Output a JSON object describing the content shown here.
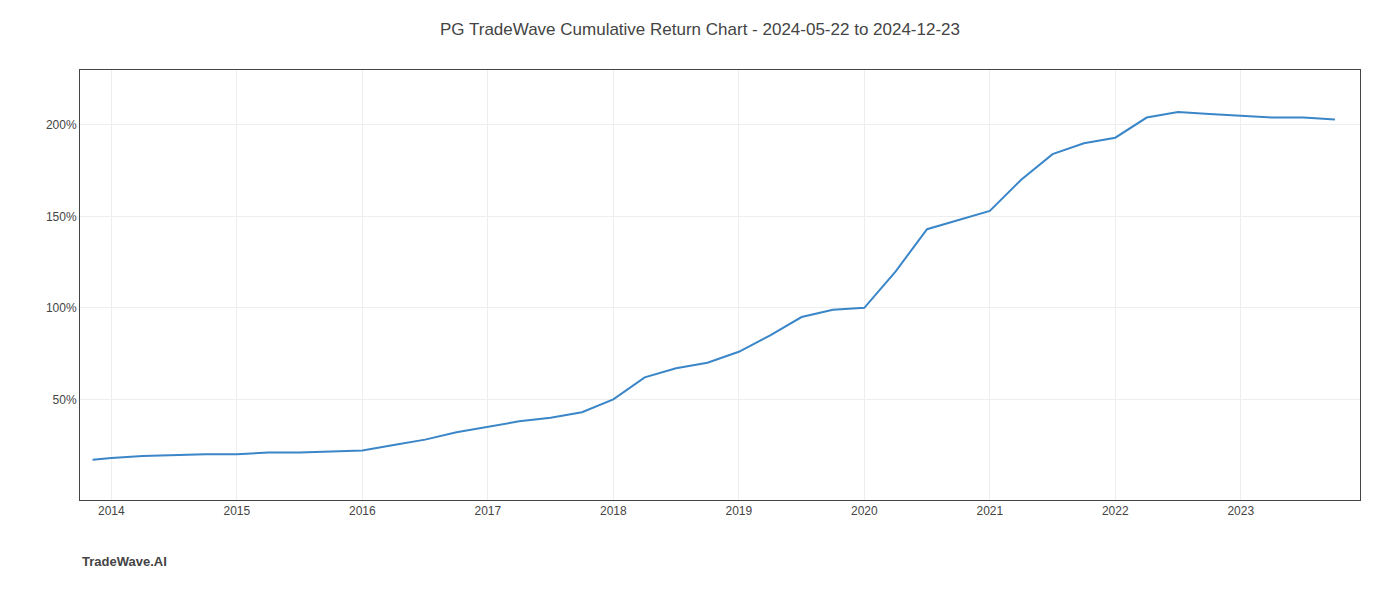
{
  "chart_data": {
    "type": "line",
    "title": "PG TradeWave Cumulative Return Chart - 2024-05-22 to 2024-12-23",
    "annotations": [
      {
        "text": "TradeWave.AI"
      }
    ],
    "x": [
      2013.85,
      2014.0,
      2014.25,
      2014.5,
      2014.75,
      2015.0,
      2015.25,
      2015.5,
      2015.75,
      2016.0,
      2016.25,
      2016.5,
      2016.75,
      2017.0,
      2017.25,
      2017.5,
      2017.75,
      2018.0,
      2018.25,
      2018.5,
      2018.75,
      2019.0,
      2019.25,
      2019.5,
      2019.75,
      2020.0,
      2020.25,
      2020.5,
      2020.75,
      2021.0,
      2021.25,
      2021.5,
      2021.75,
      2022.0,
      2022.25,
      2022.5,
      2022.75,
      2023.0,
      2023.25,
      2023.5,
      2023.75
    ],
    "values": [
      17,
      18,
      19,
      19.5,
      20,
      20,
      21,
      21,
      21.5,
      22,
      25,
      28,
      32,
      35,
      38,
      40,
      43,
      50,
      62,
      67,
      70,
      76,
      85,
      95,
      99,
      100,
      120,
      143,
      148,
      153,
      170,
      184,
      190,
      193,
      204,
      207,
      206,
      205,
      204,
      204,
      203
    ],
    "color": "#3a86c8",
    "xlim": [
      2013.75,
      2023.95
    ],
    "xticks": [
      2014,
      2015,
      2016,
      2017,
      2018,
      2019,
      2020,
      2021,
      2022,
      2023
    ],
    "ylim": [
      -5,
      230
    ],
    "yticks": [
      {
        "value": 50,
        "label": "50%"
      },
      {
        "value": 100,
        "label": "100%"
      },
      {
        "value": 150,
        "label": "150%"
      },
      {
        "value": 200,
        "label": "200%"
      }
    ],
    "grid": true
  }
}
